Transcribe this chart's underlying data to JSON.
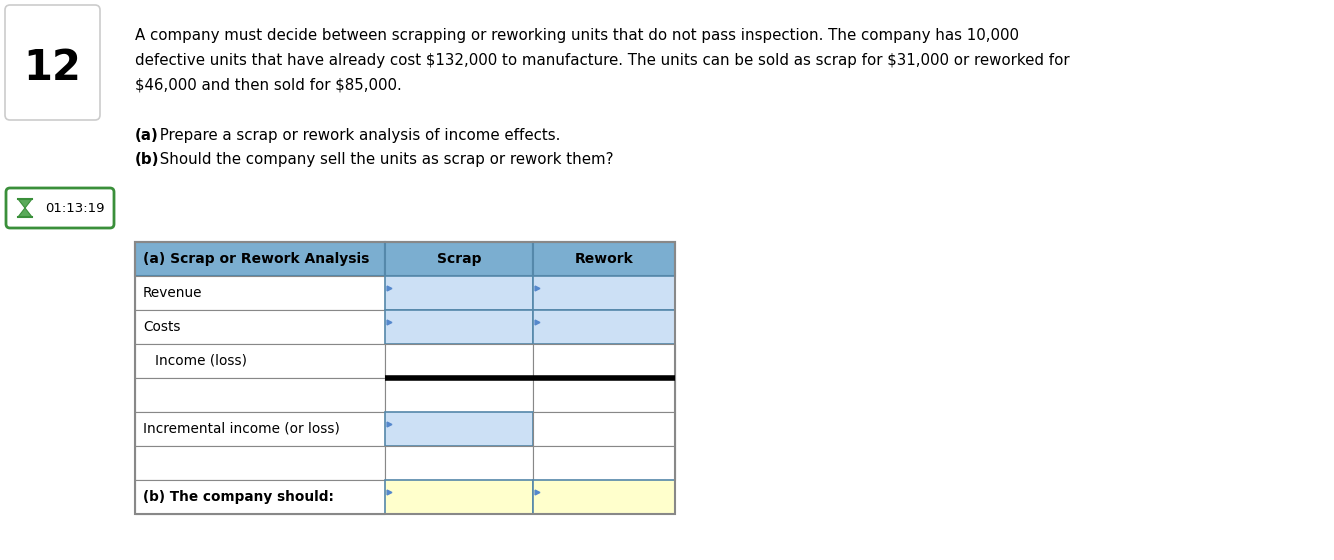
{
  "title_number": "12",
  "problem_text_line1": "A company must decide between scrapping or reworking units that do not pass inspection. The company has 10,000",
  "problem_text_line2": "defective units that have already cost $132,000 to manufacture. The units can be sold as scrap for $31,000 or reworked for",
  "problem_text_line3": "$46,000 and then sold for $85,000.",
  "question_a_bold": "(a)",
  "question_a_rest": " Prepare a scrap or rework analysis of income effects.",
  "question_b_bold": "(b)",
  "question_b_rest": " Should the company sell the units as scrap or rework them?",
  "timer_text": "01:13:19",
  "table_header": [
    "(a) Scrap or Rework Analysis",
    "Scrap",
    "Rework"
  ],
  "header_bg_color": "#7baed0",
  "cell_blue_color": "#cce0f5",
  "cell_yellow_color": "#ffffcc",
  "cell_white_color": "#ffffff",
  "border_color": "#888888",
  "bg_color": "#ffffff",
  "row_defs": [
    {
      "label": "Revenue",
      "c0": "white",
      "c1": "blue",
      "c2": "blue",
      "thick_bot": false
    },
    {
      "label": "Costs",
      "c0": "white",
      "c1": "blue",
      "c2": "blue",
      "thick_bot": false
    },
    {
      "label": "  Income (loss)",
      "c0": "white",
      "c1": "white",
      "c2": "white",
      "thick_bot": true
    },
    {
      "label": "",
      "c0": "white",
      "c1": "white",
      "c2": "white",
      "thick_bot": false
    },
    {
      "label": "Incremental income (or loss)",
      "c0": "white",
      "c1": "blue",
      "c2": "white",
      "thick_bot": false
    },
    {
      "label": "",
      "c0": "white",
      "c1": "white",
      "c2": "white",
      "thick_bot": false
    },
    {
      "label": "(b) The company should:",
      "c0": "white",
      "c1": "yellow",
      "c2": "yellow",
      "thick_bot": false
    }
  ]
}
